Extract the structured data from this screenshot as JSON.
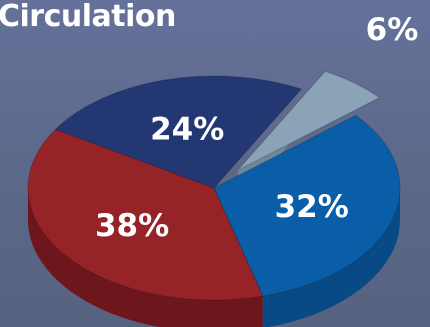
{
  "title": "Circulation",
  "chart_data": {
    "type": "pie",
    "title": "Circulation",
    "slices": [
      {
        "label": "6%",
        "value": 6,
        "color": "#8aa3b6",
        "side": "#6f8899",
        "exploded": true
      },
      {
        "label": "32%",
        "value": 32,
        "color": "#0a5ea8",
        "side": "#074a86",
        "exploded": false
      },
      {
        "label": "38%",
        "value": 38,
        "color": "#962328",
        "side": "#6d161b",
        "exploded": false
      },
      {
        "label": "24%",
        "value": 24,
        "color": "#233872",
        "side": "#182a58",
        "exploded": false
      }
    ]
  }
}
